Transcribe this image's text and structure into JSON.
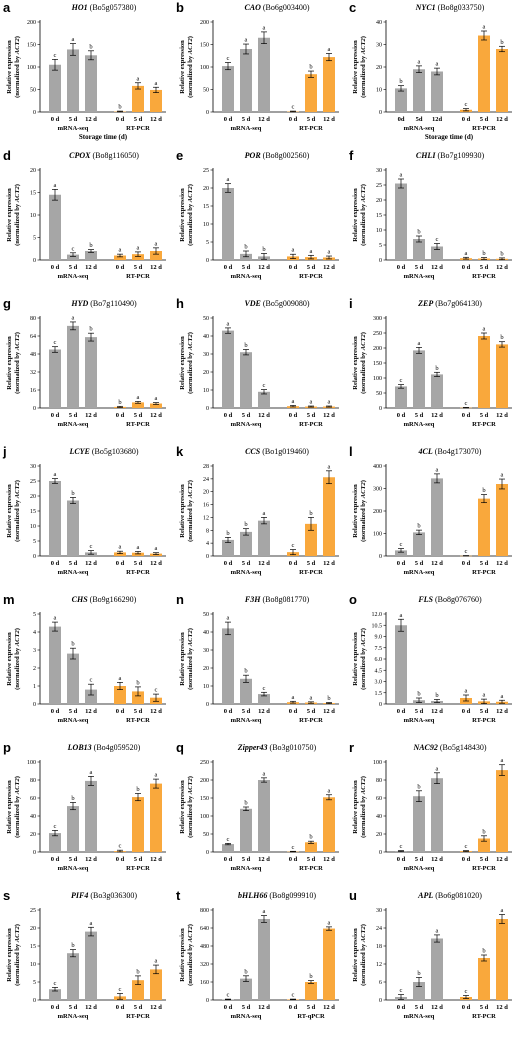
{
  "colors": {
    "mrna": "#a6a6a6",
    "rtpcr": "#f9a83c"
  },
  "chart_data": [
    {
      "type": "bar",
      "label": "a",
      "gene": "HO1",
      "locus": "(Bo5g057380)",
      "ylabel": "Relative expression",
      "ylabel2_pre": "(normalized by ",
      "ylabel2_gene": "ACT2",
      "ylabel2_post": ")",
      "yticks": [
        0,
        50,
        100,
        150,
        200
      ],
      "ylim": [
        0,
        200
      ],
      "categories": [
        "0 d",
        "5 d",
        "12 d",
        "0 d",
        "5 d",
        "12 d"
      ],
      "groups": [
        "mRNA-seq",
        "RT-PCR"
      ],
      "values": [
        105,
        139,
        126,
        1,
        58,
        49
      ],
      "errors": [
        12,
        13,
        10,
        1,
        7,
        6
      ],
      "letters": [
        "c",
        "a",
        "b",
        "b",
        "a",
        "a"
      ],
      "xtitle": "Storage time (d)"
    },
    {
      "type": "bar",
      "label": "b",
      "gene": "CAO",
      "locus": "(Bo6g003400)",
      "ylabel": "Relative expression",
      "ylabel2_pre": "(normalized by ",
      "ylabel2_gene": "ACT2",
      "ylabel2_post": ")",
      "yticks": [
        0,
        50,
        100,
        150,
        200
      ],
      "ylim": [
        0,
        200
      ],
      "categories": [
        "0 d",
        "5 d",
        "12 d",
        "0 d",
        "5 d",
        "12 d"
      ],
      "groups": [
        "mRNA-seq",
        "RT-PCR"
      ],
      "values": [
        102,
        140,
        165,
        1,
        84,
        122
      ],
      "errors": [
        8,
        11,
        13,
        1,
        7,
        8
      ],
      "letters": [
        "c",
        "a",
        "a",
        "c",
        "b",
        "a"
      ],
      "xtitle": ""
    },
    {
      "type": "bar",
      "label": "c",
      "gene": "NYC1",
      "locus": "(Bo8g033750)",
      "ylabel": "Relative expression",
      "ylabel2_pre": "(normalized by ",
      "ylabel2_gene": "ACT2",
      "ylabel2_post": ")",
      "yticks": [
        0,
        10,
        20,
        30,
        40
      ],
      "ylim": [
        0,
        40
      ],
      "categories": [
        "0d",
        "5d",
        "12d",
        "0 d",
        "5 d",
        "12 d"
      ],
      "groups": [
        "mRNA-seq",
        "RT-PCR"
      ],
      "values": [
        10.5,
        19,
        18,
        1,
        34,
        28
      ],
      "errors": [
        1.2,
        1.5,
        1.5,
        0.5,
        2,
        1.2
      ],
      "letters": [
        "b",
        "a",
        "a",
        "c",
        "a",
        "b"
      ],
      "xtitle": "Storage time (d)"
    },
    {
      "type": "bar",
      "label": "d",
      "gene": "CPOX",
      "locus": "(Bo8g116050)",
      "ylabel": "Relative expression",
      "ylabel2_pre": "(normalized by ",
      "ylabel2_gene": "ACT2",
      "ylabel2_post": ")",
      "yticks": [
        0,
        5,
        10,
        15,
        20
      ],
      "ylim": [
        0,
        20
      ],
      "categories": [
        "0 d",
        "5 d",
        "12 d",
        "0 d",
        "5 d",
        "12 d"
      ],
      "groups": [
        "mRNA-seq",
        "RT-PCR"
      ],
      "values": [
        14.5,
        1.2,
        2,
        1,
        1.3,
        2
      ],
      "errors": [
        1.2,
        0.4,
        0.3,
        0.3,
        0.5,
        0.7
      ],
      "letters": [
        "a",
        "c",
        "b",
        "a",
        "a",
        "a"
      ],
      "xtitle": ""
    },
    {
      "type": "bar",
      "label": "e",
      "gene": "POR",
      "locus": "(Bo8g002560)",
      "ylabel": "Relative expression",
      "ylabel2_pre": "(normalized by ",
      "ylabel2_gene": "ACT2",
      "ylabel2_post": ")",
      "yticks": [
        0,
        5,
        10,
        15,
        20,
        25
      ],
      "ylim": [
        0,
        25
      ],
      "categories": [
        "0 d",
        "5 d",
        "12 d",
        "0 d",
        "5 d",
        "12 d"
      ],
      "groups": [
        "mRNA-seq",
        "RT-PCR"
      ],
      "values": [
        20,
        1.7,
        1,
        1,
        0.8,
        0.7
      ],
      "errors": [
        1.2,
        0.8,
        0.8,
        0.6,
        0.5,
        0.4
      ],
      "letters": [
        "a",
        "b",
        "b",
        "a",
        "a",
        "a"
      ],
      "xtitle": ""
    },
    {
      "type": "bar",
      "label": "f",
      "gene": "CHLI",
      "locus": "(Bo7g109930)",
      "ylabel": "Relative expression",
      "ylabel2_pre": "(normalized by ",
      "ylabel2_gene": "ACT2",
      "ylabel2_post": ")",
      "yticks": [
        0,
        5,
        10,
        15,
        20,
        25,
        30
      ],
      "ylim": [
        0,
        30
      ],
      "categories": [
        "0 d",
        "5 d",
        "12 d",
        "0 d",
        "5 d",
        "12 d"
      ],
      "groups": [
        "mRNA-seq",
        "RT-PCR"
      ],
      "values": [
        25.5,
        7,
        4.5,
        0.6,
        0.5,
        0.4
      ],
      "errors": [
        1.5,
        1,
        1,
        0.3,
        0.3,
        0.3
      ],
      "letters": [
        "a",
        "b",
        "c",
        "a",
        "b",
        "b"
      ],
      "xtitle": ""
    },
    {
      "type": "bar",
      "label": "g",
      "gene": "HYD",
      "locus": "(Bo7g110490)",
      "ylabel": "Relative expression",
      "ylabel2_pre": "(normalized by ",
      "ylabel2_gene": "ACT2",
      "ylabel2_post": ")",
      "yticks": [
        0,
        16,
        32,
        48,
        64,
        80
      ],
      "ylim": [
        0,
        80
      ],
      "categories": [
        "0 d",
        "5 d",
        "12 d",
        "0 d",
        "5 d",
        "12 d"
      ],
      "groups": [
        "mRNA-seq",
        "RT-PCR"
      ],
      "values": [
        52,
        73,
        63,
        1,
        5,
        4
      ],
      "errors": [
        2.5,
        3.5,
        3.5,
        0.5,
        0.8,
        0.8
      ],
      "letters": [
        "c",
        "a",
        "b",
        "b",
        "a",
        "a"
      ],
      "xtitle": ""
    },
    {
      "type": "bar",
      "label": "h",
      "gene": "VDE",
      "locus": "(Bo5g009080)",
      "ylabel": "Relative expression",
      "ylabel2_pre": "(normalized by ",
      "ylabel2_gene": "ACT2",
      "ylabel2_post": ")",
      "yticks": [
        0,
        10,
        20,
        30,
        40,
        50
      ],
      "ylim": [
        0,
        50
      ],
      "categories": [
        "0 d",
        "5 d",
        "12 d",
        "0 d",
        "5 d",
        "12 d"
      ],
      "groups": [
        "mRNA-seq",
        "RT-PCR"
      ],
      "values": [
        43,
        31,
        9,
        1,
        0.8,
        0.8
      ],
      "errors": [
        1.5,
        1.5,
        1.2,
        0.4,
        0.3,
        0.3
      ],
      "letters": [
        "a",
        "b",
        "c",
        "a",
        "a",
        "a"
      ],
      "xtitle": ""
    },
    {
      "type": "bar",
      "label": "i",
      "gene": "ZEP",
      "locus": "(Bo7g064130)",
      "ylabel": "Relative expression",
      "ylabel2_pre": "(normalized by ",
      "ylabel2_gene": "ACT2",
      "ylabel2_post": ")",
      "yticks": [
        0,
        50,
        100,
        150,
        200,
        250,
        300
      ],
      "ylim": [
        0,
        300
      ],
      "categories": [
        "0 d",
        "5 d",
        "12 d",
        "0 d",
        "5 d",
        "12 d"
      ],
      "groups": [
        "mRNA-seq",
        "RT-PCR"
      ],
      "values": [
        72,
        192,
        112,
        1,
        240,
        212
      ],
      "errors": [
        6,
        10,
        7,
        1,
        10,
        9
      ],
      "letters": [
        "c",
        "a",
        "b",
        "c",
        "a",
        "b"
      ],
      "xtitle": ""
    },
    {
      "type": "bar",
      "label": "j",
      "gene": "LCYE",
      "locus": "(Bo5g103680)",
      "ylabel": "Relative expression",
      "ylabel2_pre": "(normalized by ",
      "ylabel2_gene": "ACT2",
      "ylabel2_post": ")",
      "yticks": [
        0,
        5,
        10,
        15,
        20,
        25,
        30
      ],
      "ylim": [
        0,
        30
      ],
      "categories": [
        "0 d",
        "5 d",
        "12 d",
        "0 d",
        "5 d",
        "12 d"
      ],
      "groups": [
        "mRNA-seq",
        "RT-PCR"
      ],
      "values": [
        25,
        18.5,
        1.2,
        1.2,
        1.1,
        0.8
      ],
      "errors": [
        0.8,
        1,
        0.6,
        0.4,
        0.4,
        0.3
      ],
      "letters": [
        "a",
        "b",
        "c",
        "a",
        "a",
        "a"
      ],
      "xtitle": ""
    },
    {
      "type": "bar",
      "label": "k",
      "gene": "CCS",
      "locus": "(Bo1g019460)",
      "ylabel": "Relative expression",
      "ylabel2_pre": "(normalized by ",
      "ylabel2_gene": "ACT2",
      "ylabel2_post": ")",
      "yticks": [
        0,
        4,
        8,
        12,
        16,
        20,
        24,
        28
      ],
      "ylim": [
        0,
        28
      ],
      "categories": [
        "0 d",
        "5 d",
        "12 d",
        "0 d",
        "5 d",
        "12 d"
      ],
      "groups": [
        "mRNA-seq",
        "RT-PCR"
      ],
      "values": [
        5,
        7.5,
        11,
        1.2,
        10,
        24.5
      ],
      "errors": [
        0.8,
        1,
        1,
        0.8,
        2,
        2
      ],
      "letters": [
        "b",
        "b",
        "a",
        "c",
        "b",
        "a"
      ],
      "xtitle": ""
    },
    {
      "type": "bar",
      "label": "l",
      "gene": "4CL",
      "locus": "(Bo4g173070)",
      "ylabel": "Relative expression",
      "ylabel2_pre": "(normalized by ",
      "ylabel2_gene": "ACT2",
      "ylabel2_post": ")",
      "yticks": [
        0,
        100,
        200,
        300,
        400
      ],
      "ylim": [
        0,
        400
      ],
      "categories": [
        "0 d",
        "5 d",
        "12 d",
        "0 d",
        "5 d",
        "12 d"
      ],
      "groups": [
        "mRNA-seq",
        "RT-PCR"
      ],
      "values": [
        25,
        105,
        345,
        1,
        255,
        320
      ],
      "errors": [
        8,
        10,
        20,
        1,
        18,
        22
      ],
      "letters": [
        "c",
        "b",
        "a",
        "c",
        "b",
        "a"
      ],
      "xtitle": ""
    },
    {
      "type": "bar",
      "label": "m",
      "gene": "CHS",
      "locus": "(Bo9g166290)",
      "ylabel": "Relative expression",
      "ylabel2_pre": "(normalized by ",
      "ylabel2_gene": "ACT2",
      "ylabel2_post": ")",
      "yticks": [
        0,
        1,
        2,
        3,
        4,
        5
      ],
      "ylim": [
        0,
        5
      ],
      "categories": [
        "0 d",
        "5 d",
        "12 d",
        "0 d",
        "5 d",
        "12 d"
      ],
      "groups": [
        "mRNA-seq",
        "RT-PCR"
      ],
      "values": [
        4.3,
        2.8,
        0.8,
        1,
        0.7,
        0.35
      ],
      "errors": [
        0.25,
        0.3,
        0.3,
        0.2,
        0.25,
        0.2
      ],
      "letters": [
        "a",
        "b",
        "c",
        "a",
        "b",
        "c"
      ],
      "xtitle": ""
    },
    {
      "type": "bar",
      "label": "n",
      "gene": "F3H",
      "locus": "(Bo8g081770)",
      "ylabel": "Relative expression",
      "ylabel2_pre": "(normalized by ",
      "ylabel2_gene": "ACT2",
      "ylabel2_post": ")",
      "yticks": [
        0,
        10,
        20,
        30,
        40,
        50
      ],
      "ylim": [
        0,
        50
      ],
      "categories": [
        "0 d",
        "5 d",
        "12 d",
        "0 d",
        "5 d",
        "12 d"
      ],
      "groups": [
        "mRNA-seq",
        "RT-PCR"
      ],
      "values": [
        42,
        14,
        5.5,
        1,
        0.8,
        0.5
      ],
      "errors": [
        3.5,
        2,
        1,
        0.5,
        0.4,
        0.3
      ],
      "letters": [
        "a",
        "b",
        "c",
        "a",
        "a",
        "b"
      ],
      "xtitle": ""
    },
    {
      "type": "bar",
      "label": "o",
      "gene": "FLS",
      "locus": "(Bo8g076760)",
      "ylabel": "Relative expression",
      "ylabel2_pre": "(normalized by ",
      "ylabel2_gene": "ACT2",
      "ylabel2_post": ")",
      "yticks": [
        0,
        1.5,
        3.0,
        4.5,
        6.0,
        7.5,
        9.0,
        10.5,
        12.0
      ],
      "ylim": [
        0,
        12
      ],
      "categories": [
        "0 d",
        "5 d",
        "12 d",
        "0 d",
        "5 d",
        "12 d"
      ],
      "groups": [
        "mRNA-seq",
        "RT-PCR"
      ],
      "values": [
        10.5,
        0.5,
        0.4,
        0.8,
        0.35,
        0.3
      ],
      "errors": [
        0.8,
        0.3,
        0.2,
        0.4,
        0.3,
        0.2
      ],
      "letters": [
        "a",
        "b",
        "b",
        "a",
        "a",
        "a"
      ],
      "xtitle": ""
    },
    {
      "type": "bar",
      "label": "p",
      "gene": "LOB13",
      "locus": "(Bo4g059520)",
      "ylabel": "Relative expression",
      "ylabel2_pre": "(normalized by ",
      "ylabel2_gene": "ACT2",
      "ylabel2_post": ")",
      "yticks": [
        0,
        20,
        40,
        60,
        80,
        100
      ],
      "ylim": [
        0,
        100
      ],
      "categories": [
        "0 d",
        "5 d",
        "12 d",
        "0 d",
        "5 d",
        "12 d"
      ],
      "groups": [
        "mRNA-seq",
        "RT-PCR"
      ],
      "values": [
        21,
        51,
        79,
        1,
        61,
        76
      ],
      "errors": [
        3,
        4,
        5,
        1,
        4,
        5
      ],
      "letters": [
        "c",
        "b",
        "a",
        "c",
        "b",
        "a"
      ],
      "xtitle": ""
    },
    {
      "type": "bar",
      "label": "q",
      "gene": "Zipper43",
      "locus": "(Bo3g010750)",
      "ylabel": "Relative expression",
      "ylabel2_pre": "(normalized by ",
      "ylabel2_gene": "ACT2",
      "ylabel2_post": ")",
      "yticks": [
        0,
        50,
        100,
        150,
        200,
        250
      ],
      "ylim": [
        0,
        250
      ],
      "categories": [
        "0 d",
        "5 d",
        "12 d",
        "0 d",
        "5 d",
        "12 d"
      ],
      "groups": [
        "mRNA-seq",
        "RT-PCR"
      ],
      "values": [
        22,
        120,
        200,
        1,
        27,
        152
      ],
      "errors": [
        2,
        5,
        6,
        1,
        3,
        7
      ],
      "letters": [
        "c",
        "b",
        "a",
        "c",
        "b",
        "a"
      ],
      "xtitle": ""
    },
    {
      "type": "bar",
      "label": "r",
      "gene": "NAC92",
      "locus": "(Bo5g148430)",
      "ylabel": "Relative expression",
      "ylabel2_pre": "(normalized by ",
      "ylabel2_gene": "ACT2",
      "ylabel2_post": ")",
      "yticks": [
        0,
        20,
        40,
        60,
        80,
        100
      ],
      "ylim": [
        0,
        100
      ],
      "categories": [
        "0 d",
        "5 d",
        "12 d",
        "0 d",
        "5 d",
        "12 d"
      ],
      "groups": [
        "mRNA-seq",
        "RT-PCR"
      ],
      "values": [
        1,
        62,
        82,
        1,
        15,
        91
      ],
      "errors": [
        0.5,
        6,
        6,
        0.5,
        3,
        6
      ],
      "letters": [
        "c",
        "b",
        "a",
        "c",
        "b",
        "a"
      ],
      "xtitle": ""
    },
    {
      "type": "bar",
      "label": "s",
      "gene": "PIF4",
      "locus": "(Bo3g036300)",
      "ylabel": "Relative expression",
      "ylabel2_pre": "(normalized by ",
      "ylabel2_gene": "ACT2",
      "ylabel2_post": ")",
      "yticks": [
        0,
        5,
        10,
        15,
        20,
        25
      ],
      "ylim": [
        0,
        25
      ],
      "categories": [
        "0 d",
        "5 d",
        "12 d",
        "0 d",
        "5 d",
        "12 d"
      ],
      "groups": [
        "mRNA-seq",
        "RT-PCR"
      ],
      "values": [
        3,
        13,
        19,
        1,
        5.5,
        8.5
      ],
      "errors": [
        0.5,
        1,
        1.2,
        0.8,
        1.2,
        1.2
      ],
      "letters": [
        "c",
        "b",
        "a",
        "c",
        "b",
        "a"
      ],
      "xtitle": ""
    },
    {
      "type": "bar",
      "label": "t",
      "gene": "bHLH66",
      "locus": "(Bo8g099910)",
      "ylabel": "Relative expression",
      "ylabel2_pre": "(normalized by ",
      "ylabel2_gene": "ACT2",
      "ylabel2_post": ")",
      "yticks": [
        0,
        160,
        320,
        480,
        640,
        800
      ],
      "ylim": [
        0,
        800
      ],
      "categories": [
        "0 d",
        "5 d",
        "12 d",
        "0 d",
        "5 d",
        "12 d"
      ],
      "groups": [
        "mRNA-seq",
        "RT-qPCR"
      ],
      "values": [
        5,
        190,
        720,
        5,
        160,
        635
      ],
      "errors": [
        3,
        25,
        30,
        3,
        12,
        15
      ],
      "letters": [
        "c",
        "b",
        "a",
        "c",
        "b",
        "a"
      ],
      "xtitle": ""
    },
    {
      "type": "bar",
      "label": "u",
      "gene": "APL",
      "locus": "(Bo6g081020)",
      "ylabel": "Relative expression",
      "ylabel2_pre": "(normalized by ",
      "ylabel2_gene": "ACT2",
      "ylabel2_post": ")",
      "yticks": [
        0,
        6,
        12,
        18,
        24,
        30
      ],
      "ylim": [
        0,
        30
      ],
      "categories": [
        "0 d",
        "5 d",
        "12 d",
        "0 d",
        "5 d",
        "12 d"
      ],
      "groups": [
        "mRNA-seq",
        "RT-PCR"
      ],
      "values": [
        1,
        6,
        20.5,
        1,
        14,
        27
      ],
      "errors": [
        0.8,
        1.5,
        1.2,
        0.5,
        1,
        1.5
      ],
      "letters": [
        "c",
        "b",
        "a",
        "c",
        "b",
        "a"
      ],
      "xtitle": ""
    }
  ]
}
